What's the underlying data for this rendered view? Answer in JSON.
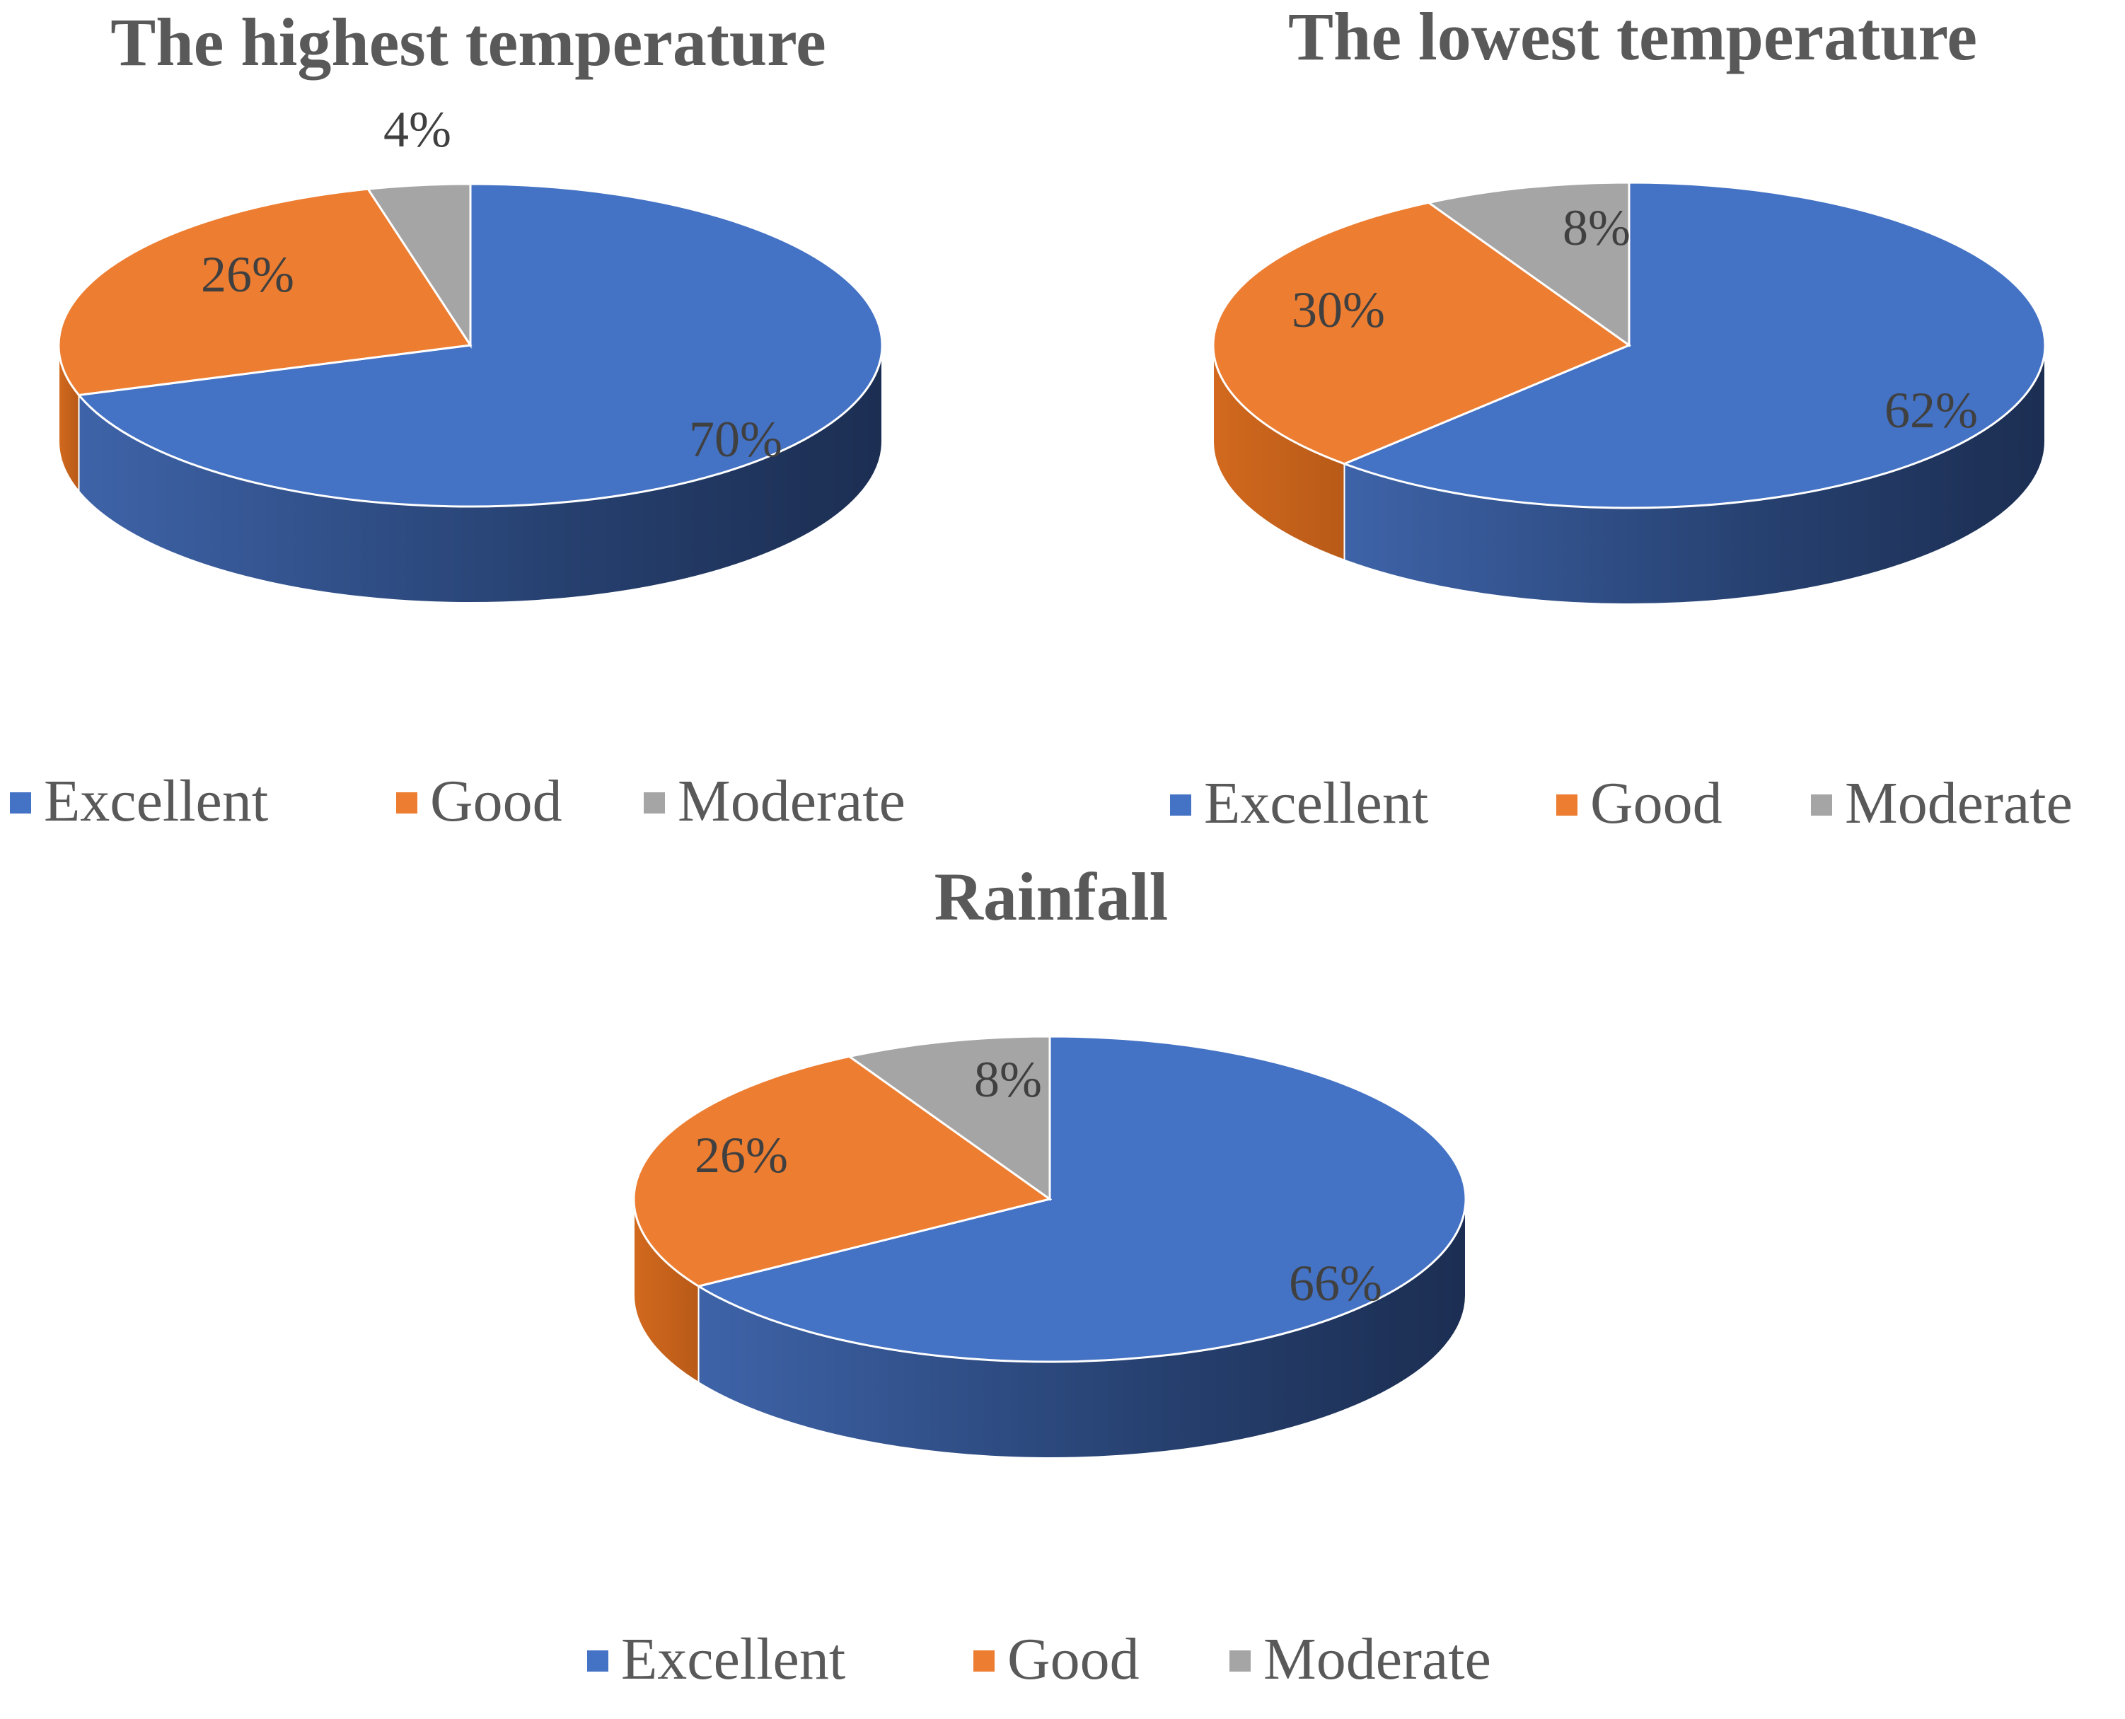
{
  "colors": {
    "Excellent": "#4472c4",
    "Good": "#ed7d31",
    "Moderate": "#a5a5a5"
  },
  "chart_data": [
    {
      "type": "pie",
      "title": "The highest temperature",
      "style": "3d-pie",
      "legend_position": "bottom",
      "categories": [
        "Excellent",
        "Good",
        "Moderate"
      ],
      "values": [
        70,
        26,
        4
      ],
      "labels": [
        "70%",
        "26%",
        "4%"
      ],
      "legend": [
        "Excellent",
        "Good",
        "Moderate"
      ]
    },
    {
      "type": "pie",
      "title": "The lowest temperature",
      "style": "3d-pie",
      "legend_position": "bottom",
      "categories": [
        "Excellent",
        "Good",
        "Moderate"
      ],
      "values": [
        62,
        30,
        8
      ],
      "labels": [
        "62%",
        "30%",
        "8%"
      ],
      "legend": [
        "Excellent",
        "Good",
        "Moderate"
      ]
    },
    {
      "type": "pie",
      "title": "Rainfall",
      "style": "3d-pie",
      "legend_position": "bottom",
      "categories": [
        "Excellent",
        "Good",
        "Moderate"
      ],
      "values": [
        66,
        26,
        8
      ],
      "labels": [
        "66%",
        "26%",
        "8%"
      ],
      "legend": [
        "Excellent",
        "Good",
        "Moderate"
      ]
    }
  ]
}
